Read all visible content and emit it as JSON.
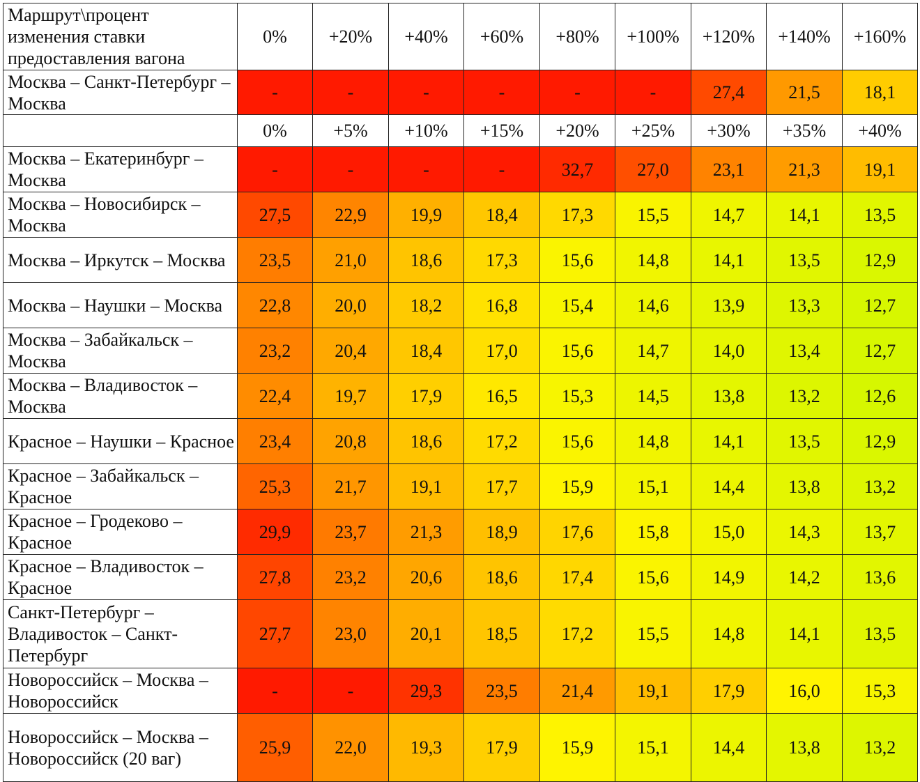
{
  "corner_header": "Маршрут\\процент изменения ставки предоставления вагона",
  "colors": {
    "dash_red": "#ff1a00",
    "scale_low": "#d6f700",
    "scale_mid": "#fff400",
    "scale_high": "#ff2a00"
  },
  "sections": [
    {
      "header": [
        "0%",
        "+20%",
        "+40%",
        "+60%",
        "+80%",
        "+100%",
        "+120%",
        "+140%",
        "+160%"
      ],
      "rows": [
        {
          "route": "Москва – Санкт-Петербург – Москва",
          "values": [
            "-",
            "-",
            "-",
            "-",
            "-",
            "-",
            "27,4",
            "21,5",
            "18,1"
          ]
        }
      ]
    },
    {
      "header": [
        "0%",
        "+5%",
        "+10%",
        "+15%",
        "+20%",
        "+25%",
        "+30%",
        "+35%",
        "+40%"
      ],
      "rows": [
        {
          "route": "Москва – Екатеринбург – Москва",
          "values": [
            "-",
            "-",
            "-",
            "-",
            "32,7",
            "27,0",
            "23,1",
            "21,3",
            "19,1"
          ]
        },
        {
          "route": "Москва – Новосибирск – Москва",
          "values": [
            "27,5",
            "22,9",
            "19,9",
            "18,4",
            "17,3",
            "15,5",
            "14,7",
            "14,1",
            "13,5"
          ]
        },
        {
          "route": "Москва – Иркутск – Москва",
          "values": [
            "23,5",
            "21,0",
            "18,6",
            "17,3",
            "15,6",
            "14,8",
            "14,1",
            "13,5",
            "12,9"
          ]
        },
        {
          "route": "Москва – Наушки – Москва",
          "values": [
            "22,8",
            "20,0",
            "18,2",
            "16,8",
            "15,4",
            "14,6",
            "13,9",
            "13,3",
            "12,7"
          ]
        },
        {
          "route": "Москва – Забайкальск – Москва",
          "values": [
            "23,2",
            "20,4",
            "18,4",
            "17,0",
            "15,6",
            "14,7",
            "14,0",
            "13,4",
            "12,7"
          ]
        },
        {
          "route": "Москва – Владивосток – Москва",
          "values": [
            "22,4",
            "19,7",
            "17,9",
            "16,5",
            "15,3",
            "14,5",
            "13,8",
            "13,2",
            "12,6"
          ]
        },
        {
          "route": "Красное – Наушки – Красное",
          "values": [
            "23,4",
            "20,8",
            "18,6",
            "17,2",
            "15,6",
            "14,8",
            "14,1",
            "13,5",
            "12,9"
          ]
        },
        {
          "route": "Красное – Забайкальск – Красное",
          "values": [
            "25,3",
            "21,7",
            "19,1",
            "17,7",
            "15,9",
            "15,1",
            "14,4",
            "13,8",
            "13,2"
          ]
        },
        {
          "route": "Красное – Гродеково – Красное",
          "values": [
            "29,9",
            "23,7",
            "21,3",
            "18,9",
            "17,6",
            "15,8",
            "15,0",
            "14,3",
            "13,7"
          ]
        },
        {
          "route": "Красное – Владивосток – Красное",
          "values": [
            "27,8",
            "23,2",
            "20,6",
            "18,6",
            "17,4",
            "15,6",
            "14,9",
            "14,2",
            "13,6"
          ]
        },
        {
          "route": "Санкт-Петербург – Владивосток – Санкт-Петербург",
          "values": [
            "27,7",
            "23,0",
            "20,1",
            "18,5",
            "17,2",
            "15,5",
            "14,8",
            "14,1",
            "13,5"
          ]
        },
        {
          "route": "Новороссийск – Москва – Новороссийск",
          "values": [
            "-",
            "-",
            "29,3",
            "23,5",
            "21,4",
            "19,1",
            "17,9",
            "16,0",
            "15,3"
          ]
        },
        {
          "route": "Новороссийск – Москва – Новороссийск (20 ваг)",
          "values": [
            "25,9",
            "22,0",
            "19,3",
            "17,9",
            "15,9",
            "15,1",
            "14,4",
            "13,8",
            "13,2"
          ]
        }
      ]
    }
  ]
}
